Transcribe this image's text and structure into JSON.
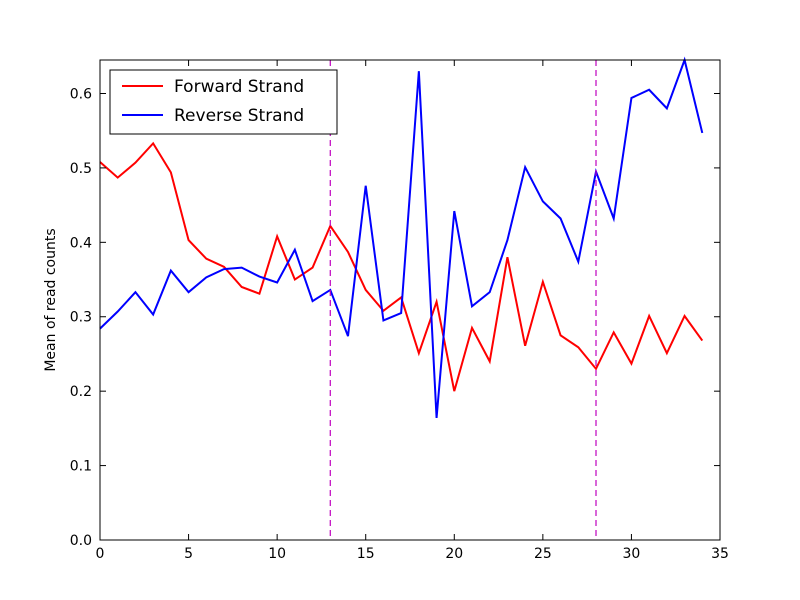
{
  "chart_data": {
    "type": "line",
    "title": "",
    "xlabel": "",
    "ylabel": "Mean of read counts",
    "xlim": [
      0,
      35
    ],
    "ylim": [
      0,
      0.645
    ],
    "xticks": [
      0,
      5,
      10,
      15,
      20,
      25,
      30,
      35
    ],
    "yticks": [
      0.0,
      0.1,
      0.2,
      0.3,
      0.4,
      0.5,
      0.6
    ],
    "ytick_labels": [
      "0.0",
      "0.1",
      "0.2",
      "0.3",
      "0.4",
      "0.5",
      "0.6"
    ],
    "grid": false,
    "legend_position": "top-left",
    "x": [
      0,
      1,
      2,
      3,
      4,
      5,
      6,
      7,
      8,
      9,
      10,
      11,
      12,
      13,
      14,
      15,
      16,
      17,
      18,
      19,
      20,
      21,
      22,
      23,
      24,
      25,
      26,
      27,
      28,
      29,
      30,
      31,
      32,
      33,
      34
    ],
    "series": [
      {
        "name": "Forward Strand",
        "color": "#ff0000",
        "values": [
          0.508,
          0.487,
          0.507,
          0.533,
          0.494,
          0.403,
          0.378,
          0.367,
          0.34,
          0.331,
          0.408,
          0.35,
          0.366,
          0.422,
          0.387,
          0.336,
          0.308,
          0.326,
          0.251,
          0.32,
          0.2,
          0.285,
          0.24,
          0.38,
          0.261,
          0.347,
          0.275,
          0.259,
          0.23,
          0.279,
          0.237,
          0.301,
          0.251,
          0.301,
          0.268
        ]
      },
      {
        "name": "Reverse Strand",
        "color": "#0000ff",
        "values": [
          0.284,
          0.307,
          0.333,
          0.303,
          0.362,
          0.333,
          0.353,
          0.364,
          0.366,
          0.354,
          0.346,
          0.39,
          0.321,
          0.336,
          0.274,
          0.476,
          0.295,
          0.305,
          0.63,
          0.164,
          0.442,
          0.314,
          0.333,
          0.403,
          0.501,
          0.455,
          0.432,
          0.374,
          0.495,
          0.432,
          0.594,
          0.605,
          0.58,
          0.645,
          0.547
        ]
      }
    ],
    "vlines": [
      {
        "x": 13,
        "color": "#bf00bf",
        "style": "dashed"
      },
      {
        "x": 28,
        "color": "#bf00bf",
        "style": "dashed"
      }
    ]
  }
}
